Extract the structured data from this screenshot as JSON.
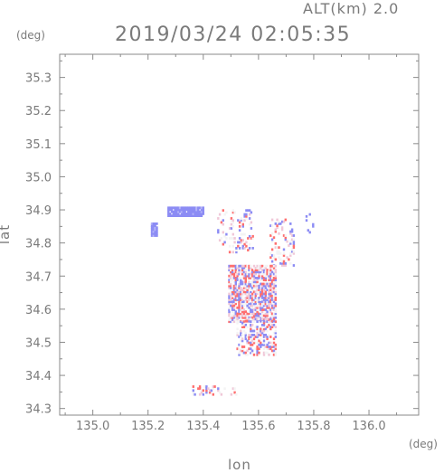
{
  "header": {
    "altitude_label": "ALT(km) 2.0",
    "timestamp": "2019/03/24 02:05:35"
  },
  "chart_data": {
    "type": "heatmap",
    "xlabel": "lon",
    "ylabel": "lat",
    "x_unit": "(deg)",
    "y_unit": "(deg)",
    "xlim": [
      134.88,
      136.18
    ],
    "ylim": [
      34.28,
      35.37
    ],
    "x_ticks": [
      "135.0",
      "135.2",
      "135.4",
      "135.6",
      "135.8",
      "136.0"
    ],
    "y_ticks": [
      "34.3",
      "34.4",
      "34.5",
      "34.6",
      "34.7",
      "34.8",
      "34.9",
      "35.0",
      "35.1",
      "35.2",
      "35.3"
    ],
    "grid": false,
    "colors": {
      "positive": "#ff6f6f",
      "negative": "#8c8cf4",
      "neutral": "#f4f4f4",
      "axis": "#8a8a8a"
    },
    "regions": [
      {
        "lon": [
          135.21,
          135.23
        ],
        "lat": [
          34.82,
          34.86
        ],
        "sign": "negative",
        "density": "solid"
      },
      {
        "lon": [
          135.27,
          135.4
        ],
        "lat": [
          34.88,
          34.91
        ],
        "sign": "negative",
        "density": "solid"
      },
      {
        "lon": [
          135.45,
          135.58
        ],
        "lat": [
          34.77,
          34.9
        ],
        "sign": "mixed",
        "density": "sparse"
      },
      {
        "lon": [
          135.64,
          135.73
        ],
        "lat": [
          34.73,
          34.87
        ],
        "sign": "mixed",
        "density": "sparse"
      },
      {
        "lon": [
          135.77,
          135.8
        ],
        "lat": [
          34.83,
          34.89
        ],
        "sign": "negative",
        "density": "sparse"
      },
      {
        "lon": [
          135.49,
          135.66
        ],
        "lat": [
          34.56,
          34.73
        ],
        "sign": "mixed",
        "density": "dense"
      },
      {
        "lon": [
          135.52,
          135.66
        ],
        "lat": [
          34.46,
          34.57
        ],
        "sign": "mixed",
        "density": "medium"
      },
      {
        "lon": [
          135.36,
          135.53
        ],
        "lat": [
          34.34,
          34.37
        ],
        "sign": "mixed",
        "density": "sparse"
      }
    ]
  }
}
